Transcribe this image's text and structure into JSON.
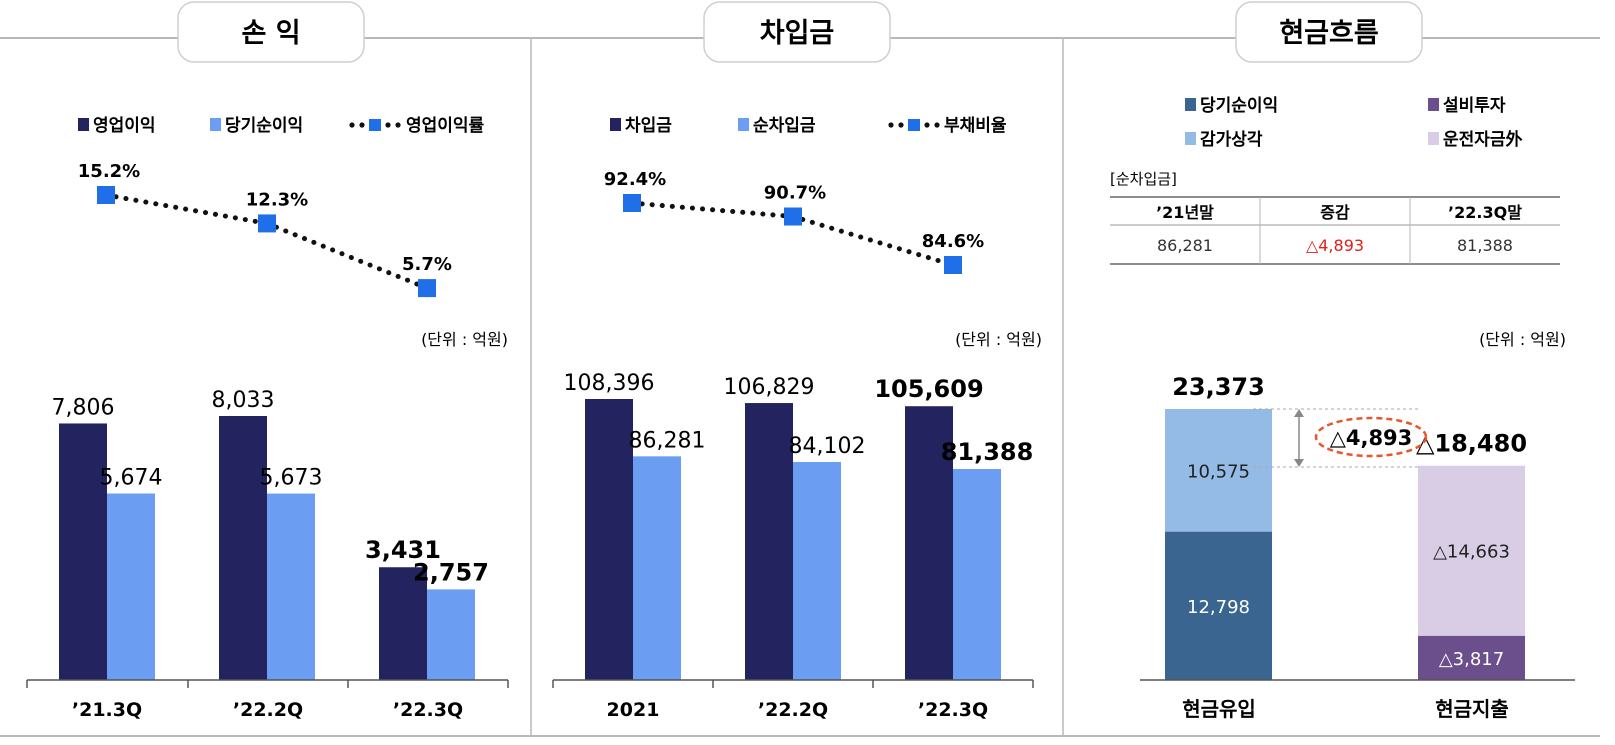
{
  "panels": {
    "income": {
      "title": "손 익"
    },
    "borrowings": {
      "title": "차입금"
    },
    "cashflow": {
      "title": "현금흐름"
    }
  },
  "colors": {
    "dark_bar": "#23235f",
    "light_bar": "#6b9df2",
    "marker": "#1f6fe8",
    "cf_dark": "#3a6591",
    "cf_light": "#94bbe6",
    "cf_purple": "#6b4f8c",
    "cf_lavender": "#d9cde6",
    "neg_red": "#e0201b",
    "oval": "#e8562a"
  },
  "chart_data": [
    {
      "type": "bar",
      "panel": "income",
      "categories": [
        "’21.3Q",
        "’22.2Q",
        "’22.3Q"
      ],
      "series": [
        {
          "name": "영업이익",
          "values": [
            7806,
            8033,
            3431
          ],
          "labels": [
            "7,806",
            "8,033",
            "3,431"
          ]
        },
        {
          "name": "당기순이익",
          "values": [
            5674,
            5673,
            2757
          ],
          "labels": [
            "5,674",
            "5,673",
            "2,757"
          ]
        }
      ],
      "line": {
        "name": "영업이익률",
        "values": [
          15.2,
          12.3,
          5.7
        ],
        "labels": [
          "15.2%",
          "12.3%",
          "5.7%"
        ]
      },
      "unit": "(단위 : 억원)"
    },
    {
      "type": "bar",
      "panel": "borrowings",
      "categories": [
        "2021",
        "’22.2Q",
        "’22.3Q"
      ],
      "series": [
        {
          "name": "차입금",
          "values": [
            108396,
            106829,
            105609
          ],
          "labels": [
            "108,396",
            "106,829",
            "105,609"
          ]
        },
        {
          "name": "순차입금",
          "values": [
            86281,
            84102,
            81388
          ],
          "labels": [
            "86,281",
            "84,102",
            "81,388"
          ]
        }
      ],
      "line": {
        "name": "부채비율",
        "values": [
          92.4,
          90.7,
          84.6
        ],
        "labels": [
          "92.4%",
          "90.7%",
          "84.6%"
        ]
      },
      "unit": "(단위 : 억원)"
    },
    {
      "type": "bar",
      "panel": "cashflow",
      "stacked": true,
      "categories": [
        "현금유입",
        "현금지출"
      ],
      "series": [
        {
          "name": "당기순이익",
          "values": [
            12798,
            0
          ],
          "labels": [
            "12,798",
            ""
          ]
        },
        {
          "name": "감가상각",
          "values": [
            10575,
            0
          ],
          "labels": [
            "10,575",
            ""
          ]
        },
        {
          "name": "설비투자",
          "values": [
            0,
            3817
          ],
          "labels": [
            "",
            "△3,817"
          ]
        },
        {
          "name": "운전자금外",
          "values": [
            0,
            14663
          ],
          "labels": [
            "",
            "△14,663"
          ]
        }
      ],
      "totals": [
        "23,373",
        "△18,480"
      ],
      "difference": "△4,893",
      "unit": "(단위 : 억원)",
      "table": {
        "caption": "[순차입금]",
        "headers": [
          "’21년말",
          "증감",
          "’22.3Q말"
        ],
        "values": [
          "86,281",
          "△4,893",
          "81,388"
        ]
      }
    }
  ]
}
